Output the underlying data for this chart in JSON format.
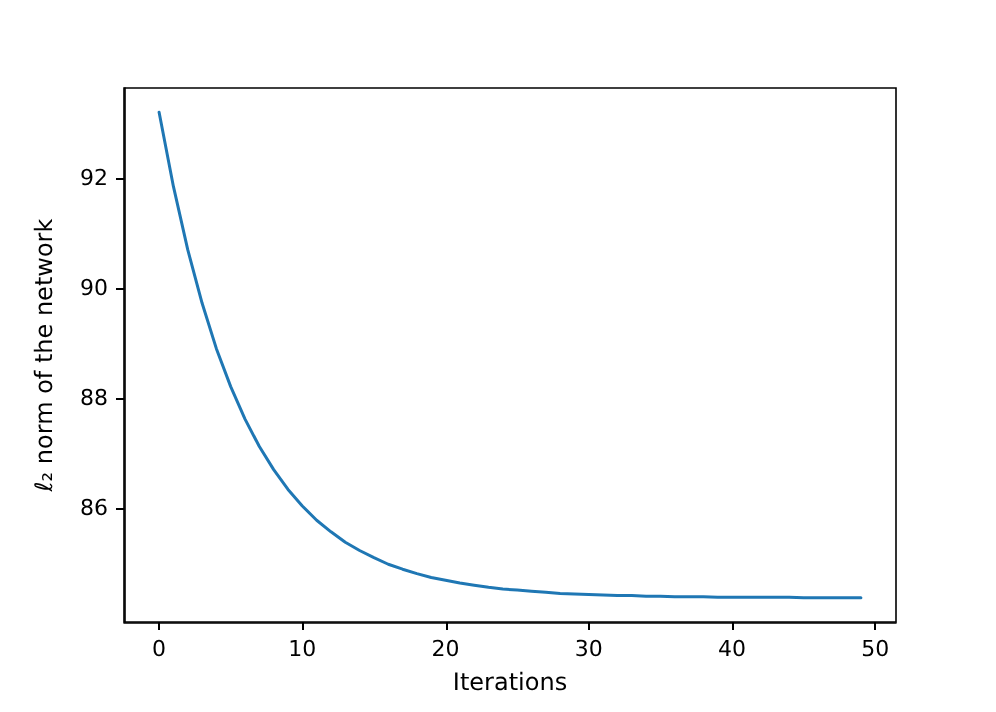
{
  "chart_data": {
    "type": "line",
    "xlabel": "Iterations",
    "ylabel": "ℓ₂ norm of the network",
    "x": [
      0,
      1,
      2,
      3,
      4,
      5,
      6,
      7,
      8,
      9,
      10,
      11,
      12,
      13,
      14,
      15,
      16,
      17,
      18,
      19,
      20,
      21,
      22,
      23,
      24,
      25,
      26,
      27,
      28,
      29,
      30,
      31,
      32,
      33,
      34,
      35,
      36,
      37,
      38,
      39,
      40,
      41,
      42,
      43,
      44,
      45,
      46,
      47,
      48,
      49
    ],
    "series": [
      {
        "color": "#1f77b4",
        "values": [
          93.19,
          91.84,
          90.69,
          89.72,
          88.89,
          88.2,
          87.61,
          87.11,
          86.69,
          86.33,
          86.03,
          85.77,
          85.56,
          85.37,
          85.22,
          85.09,
          84.97,
          84.88,
          84.8,
          84.73,
          84.68,
          84.63,
          84.59,
          84.55,
          84.52,
          84.5,
          84.48,
          84.46,
          84.44,
          84.43,
          84.42,
          84.41,
          84.4,
          84.4,
          84.39,
          84.39,
          84.38,
          84.38,
          84.38,
          84.37,
          84.37,
          84.37,
          84.37,
          84.37,
          84.37,
          84.36,
          84.36,
          84.36,
          84.36,
          84.36
        ]
      }
    ],
    "xlim": [
      -2.45,
      51.45
    ],
    "ylim": [
      83.92,
      93.63
    ],
    "xticks": [
      0,
      10,
      20,
      30,
      40,
      50
    ],
    "yticks": [
      86,
      88,
      90,
      92
    ],
    "grid": false,
    "marker": "none",
    "line_style": "solid"
  }
}
